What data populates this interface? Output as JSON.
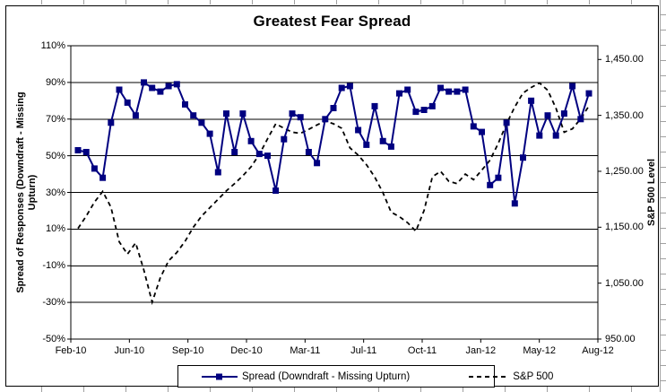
{
  "title": "Greatest Fear Spread",
  "axes": {
    "left": {
      "title": "Spread of Responses (Downdraft - Missing Upturn)",
      "ticks": [
        "110%",
        "90%",
        "70%",
        "50%",
        "30%",
        "10%",
        "-10%",
        "-30%",
        "-50%"
      ]
    },
    "right": {
      "title": "S&P 500 Level",
      "ticks": [
        "1,450.00",
        "1,350.00",
        "1,250.00",
        "1,150.00",
        "1,050.00",
        "950.00"
      ]
    },
    "x": {
      "ticks": [
        "Feb-10",
        "Jun-10",
        "Sep-10",
        "Dec-10",
        "Mar-11",
        "Jul-11",
        "Oct-11",
        "Jan-12",
        "May-12",
        "Aug-12"
      ]
    }
  },
  "legend": {
    "series1": "Spread (Downdraft - Missing Upturn)",
    "series2": "S&P 500"
  },
  "colors": {
    "spread_line": "#000080",
    "sp500_line": "#000000",
    "grid": "#000000",
    "background": "#ffffff",
    "sheet_edge": "#a0a0a0"
  },
  "chart_data": {
    "type": "line",
    "title": "Greatest Fear Spread",
    "x_tick_labels": [
      "Feb-10",
      "Jun-10",
      "Sep-10",
      "Dec-10",
      "Mar-11",
      "Jul-11",
      "Oct-11",
      "Jan-12",
      "May-12",
      "Aug-12"
    ],
    "sampling_note": "biweekly points between Feb-10 and Aug-12",
    "grid": "horizontal",
    "legend_position": "bottom",
    "left_axis": {
      "label": "Spread of Responses (Downdraft - Missing Upturn)",
      "min": -50,
      "max": 110,
      "tick_step": 20,
      "unit": "%"
    },
    "right_axis": {
      "label": "S&P 500 Level",
      "min": 950,
      "max": 1450,
      "tick_step": 100
    },
    "series": [
      {
        "name": "Spread (Downdraft - Missing Upturn)",
        "axis": "left",
        "style": "solid",
        "marker": "square",
        "color": "#000080",
        "values": [
          53,
          52,
          43,
          38,
          68,
          86,
          79,
          72,
          90,
          87,
          85,
          88,
          89,
          78,
          72,
          68,
          62,
          41,
          73,
          52,
          73,
          58,
          51,
          50,
          31,
          59,
          73,
          71,
          52,
          46,
          70,
          76,
          87,
          88,
          64,
          56,
          77,
          58,
          55,
          84,
          86,
          74,
          75,
          77,
          87,
          85,
          85,
          86,
          66,
          63,
          34,
          38,
          68,
          24,
          49,
          80,
          61,
          72,
          61,
          73,
          88,
          70,
          84
        ]
      },
      {
        "name": "S&P 500",
        "axis": "right",
        "style": "dashed",
        "marker": "none",
        "color": "#000000",
        "values": [
          1148,
          1170,
          1195,
          1214,
          1186,
          1124,
          1102,
          1122,
          1073,
          1016,
          1060,
          1090,
          1105,
          1125,
          1150,
          1170,
          1185,
          1200,
          1215,
          1228,
          1242,
          1258,
          1280,
          1308,
          1335,
          1327,
          1320,
          1318,
          1325,
          1333,
          1340,
          1335,
          1327,
          1292,
          1279,
          1262,
          1240,
          1212,
          1177,
          1169,
          1158,
          1143,
          1180,
          1240,
          1250,
          1232,
          1228,
          1245,
          1235,
          1252,
          1270,
          1300,
          1335,
          1365,
          1390,
          1400,
          1408,
          1395,
          1363,
          1320,
          1326,
          1344,
          1367
        ]
      }
    ]
  }
}
